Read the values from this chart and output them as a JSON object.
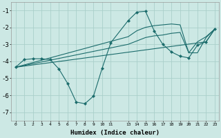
{
  "xlabel": "Humidex (Indice chaleur)",
  "background_color": "#cce8e4",
  "grid_color": "#aacfca",
  "line_color": "#1a6b6b",
  "xlim": [
    -0.5,
    23.5
  ],
  "ylim": [
    -7.5,
    -0.5
  ],
  "xtick_positions": [
    0,
    1,
    2,
    3,
    4,
    5,
    6,
    7,
    8,
    9,
    10,
    11,
    13,
    14,
    15,
    16,
    17,
    18,
    19,
    20,
    21,
    22,
    23
  ],
  "xtick_labels": [
    "0",
    "1",
    "2",
    "3",
    "4",
    "5",
    "6",
    "7",
    "8",
    "9",
    "10",
    "11",
    "13",
    "14",
    "15",
    "16",
    "17",
    "18",
    "19",
    "20",
    "21",
    "22",
    "23"
  ],
  "yticks": [
    -7,
    -6,
    -5,
    -4,
    -3,
    -2,
    -1
  ],
  "series": [
    {
      "x": [
        0,
        1,
        2,
        3,
        4,
        5,
        6,
        7,
        8,
        9,
        10,
        11,
        13,
        14,
        15,
        16,
        17,
        18,
        19,
        20,
        21,
        22,
        23
      ],
      "y": [
        -4.35,
        -3.9,
        -3.85,
        -3.85,
        -3.9,
        -4.45,
        -5.3,
        -6.4,
        -6.5,
        -6.05,
        -4.4,
        -2.9,
        -1.6,
        -1.1,
        -1.05,
        -2.2,
        -3.0,
        -3.45,
        -3.7,
        -3.8,
        -3.05,
        -2.85,
        -2.1
      ],
      "marker": true,
      "markersize": 2.2
    },
    {
      "x": [
        0,
        22,
        23
      ],
      "y": [
        -4.35,
        -2.85,
        -2.1
      ],
      "marker": false,
      "markersize": 0
    },
    {
      "x": [
        0,
        13,
        14,
        15,
        16,
        17,
        18,
        19,
        20,
        21,
        22,
        23
      ],
      "y": [
        -4.35,
        -3.0,
        -2.8,
        -2.6,
        -2.5,
        -2.45,
        -2.35,
        -2.3,
        -3.5,
        -3.5,
        -2.6,
        -2.1
      ],
      "marker": false,
      "markersize": 0
    },
    {
      "x": [
        0,
        13,
        14,
        15,
        16,
        17,
        18,
        19,
        20,
        21,
        22,
        23
      ],
      "y": [
        -4.35,
        -2.55,
        -2.2,
        -2.0,
        -1.9,
        -1.85,
        -1.8,
        -1.85,
        -3.5,
        -2.85,
        -2.55,
        -2.1
      ],
      "marker": false,
      "markersize": 0
    }
  ]
}
